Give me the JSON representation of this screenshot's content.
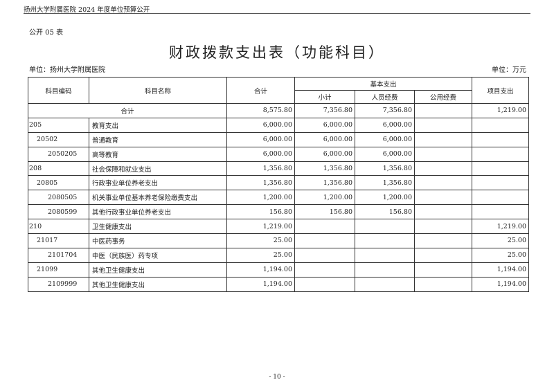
{
  "header": "扬州大学附属医院 2024 年度单位预算公开",
  "form_no": "公开 05 表",
  "title": "财政拨款支出表（功能科目）",
  "unit_left": "单位：扬州大学附属医院",
  "unit_right": "单位：万元",
  "columns": {
    "code": "科目编码",
    "name": "科目名称",
    "total": "合计",
    "basic": "基本支出",
    "subtotal": "小计",
    "personnel": "人员经费",
    "public": "公用经费",
    "project": "项目支出"
  },
  "total_row": {
    "label": "合计",
    "total": "8,575.80",
    "subtotal": "7,356.80",
    "personnel": "7,356.80",
    "public": "",
    "project": "1,219.00"
  },
  "rows": [
    {
      "code": "205",
      "level": 0,
      "name": "教育支出",
      "total": "6,000.00",
      "subtotal": "6,000.00",
      "personnel": "6,000.00",
      "public": "",
      "project": ""
    },
    {
      "code": "20502",
      "level": 1,
      "name": "普通教育",
      "total": "6,000.00",
      "subtotal": "6,000.00",
      "personnel": "6,000.00",
      "public": "",
      "project": ""
    },
    {
      "code": "2050205",
      "level": 2,
      "name": "高等教育",
      "total": "6,000.00",
      "subtotal": "6,000.00",
      "personnel": "6,000.00",
      "public": "",
      "project": ""
    },
    {
      "code": "208",
      "level": 0,
      "name": "社会保障和就业支出",
      "total": "1,356.80",
      "subtotal": "1,356.80",
      "personnel": "1,356.80",
      "public": "",
      "project": ""
    },
    {
      "code": "20805",
      "level": 1,
      "name": "行政事业单位养老支出",
      "total": "1,356.80",
      "subtotal": "1,356.80",
      "personnel": "1,356.80",
      "public": "",
      "project": ""
    },
    {
      "code": "2080505",
      "level": 2,
      "name": "机关事业单位基本养老保险缴费支出",
      "total": "1,200.00",
      "subtotal": "1,200.00",
      "personnel": "1,200.00",
      "public": "",
      "project": ""
    },
    {
      "code": "2080599",
      "level": 2,
      "name": "其他行政事业单位养老支出",
      "total": "156.80",
      "subtotal": "156.80",
      "personnel": "156.80",
      "public": "",
      "project": ""
    },
    {
      "code": "210",
      "level": 0,
      "name": "卫生健康支出",
      "total": "1,219.00",
      "subtotal": "",
      "personnel": "",
      "public": "",
      "project": "1,219.00"
    },
    {
      "code": "21017",
      "level": 1,
      "name": "中医药事务",
      "total": "25.00",
      "subtotal": "",
      "personnel": "",
      "public": "",
      "project": "25.00"
    },
    {
      "code": "2101704",
      "level": 2,
      "name": "中医（民族医）药专项",
      "total": "25.00",
      "subtotal": "",
      "personnel": "",
      "public": "",
      "project": "25.00"
    },
    {
      "code": "21099",
      "level": 1,
      "name": "其他卫生健康支出",
      "total": "1,194.00",
      "subtotal": "",
      "personnel": "",
      "public": "",
      "project": "1,194.00"
    },
    {
      "code": "2109999",
      "level": 2,
      "name": "其他卫生健康支出",
      "total": "1,194.00",
      "subtotal": "",
      "personnel": "",
      "public": "",
      "project": "1,194.00"
    }
  ],
  "page_number": "- 10 -"
}
